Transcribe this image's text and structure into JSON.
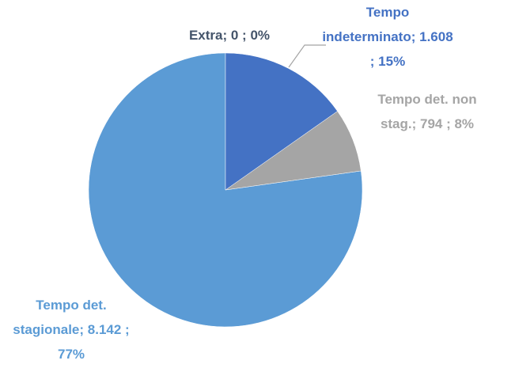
{
  "chart_data": {
    "type": "pie",
    "values": [
      1608,
      794,
      8142,
      0
    ],
    "value_labels": [
      "Tempo indeterminato; 1.608 ; 15%",
      "Tempo det. non stag.; 794 ; 8%",
      "Tempo det. stagionale; 8.142 ; 77%",
      "Extra; 0 ; 0%"
    ],
    "colors": [
      "#4472c4",
      "#a5a5a5",
      "#5b9bd5",
      "#44546a"
    ]
  }
}
